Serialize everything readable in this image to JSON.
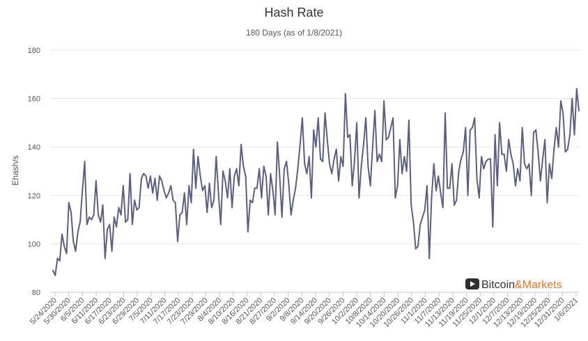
{
  "chart_data": {
    "type": "line",
    "title": "Hash Rate",
    "subtitle": "180 Days (as of 1/8/2021)",
    "xlabel": "",
    "ylabel": "Ehash/s",
    "ylim": [
      80,
      180
    ],
    "yticks": [
      80,
      100,
      120,
      140,
      160,
      180
    ],
    "grid": true,
    "legend": "none",
    "x_tick_labels": [
      "5/24/2020",
      "5/30/2020",
      "6/5/2020",
      "6/11/2020",
      "6/17/2020",
      "6/23/2020",
      "6/29/2020",
      "7/5/2020",
      "7/11/2020",
      "7/17/2020",
      "7/23/2020",
      "7/29/2020",
      "8/4/2020",
      "8/10/2020",
      "8/16/2020",
      "8/21/2020",
      "8/27/2020",
      "9/2/2020",
      "9/8/2020",
      "9/14/2020",
      "9/20/2020",
      "9/26/2020",
      "10/2/2020",
      "10/8/2020",
      "10/14/2020",
      "10/20/2020",
      "10/26/2020",
      "11/1/2020",
      "11/7/2020",
      "11/13/2020",
      "11/19/2020",
      "11/25/2020",
      "12/1/2020",
      "12/7/2020",
      "12/13/2020",
      "12/19/2020",
      "12/25/2020",
      "12/31/2020",
      "1/6/2021"
    ],
    "line_color": "#5a5f80",
    "series": [
      {
        "values": [
          89,
          87,
          94,
          93,
          104,
          99,
          96,
          117,
          113,
          101,
          97,
          105,
          109,
          122,
          134,
          108,
          111,
          110,
          112,
          126,
          112,
          109,
          116,
          94,
          106,
          108,
          97,
          111,
          107,
          115,
          112,
          124,
          109,
          110,
          129,
          108,
          118,
          114,
          115,
          127,
          129,
          128,
          123,
          128,
          121,
          127,
          118,
          128,
          126,
          122,
          119,
          121,
          124,
          118,
          117,
          101,
          112,
          113,
          121,
          108,
          124,
          117,
          139,
          123,
          136,
          128,
          122,
          124,
          113,
          125,
          115,
          118,
          136,
          121,
          108,
          130,
          126,
          119,
          131,
          115,
          128,
          131,
          124,
          141,
          132,
          128,
          105,
          118,
          117,
          123,
          123,
          131,
          119,
          132,
          128,
          112,
          129,
          122,
          112,
          142,
          128,
          111,
          131,
          134,
          125,
          112,
          118,
          123,
          131,
          141,
          152,
          133,
          129,
          136,
          119,
          147,
          140,
          152,
          135,
          134,
          154,
          143,
          133,
          129,
          135,
          139,
          126,
          136,
          132,
          162,
          144,
          145,
          124,
          134,
          150,
          119,
          132,
          141,
          152,
          132,
          124,
          140,
          155,
          134,
          137,
          134,
          159,
          143,
          144,
          148,
          152,
          119,
          124,
          143,
          129,
          136,
          130,
          151,
          116,
          109,
          98,
          99,
          108,
          111,
          114,
          124,
          94,
          119,
          133,
          122,
          128,
          121,
          115,
          154,
          123,
          123,
          133,
          116,
          118,
          130,
          135,
          138,
          148,
          120,
          147,
          148,
          152,
          127,
          119,
          136,
          131,
          134,
          135,
          135,
          107,
          145,
          124,
          150,
          137,
          137,
          130,
          143,
          137,
          133,
          124,
          131,
          126,
          148,
          133,
          131,
          133,
          120,
          146,
          147,
          138,
          126,
          135,
          143,
          117,
          133,
          127,
          139,
          148,
          140,
          159,
          154,
          138,
          139,
          145,
          160,
          145,
          164,
          155
        ]
      }
    ]
  },
  "watermark": {
    "brand_text": "Bitcoin&Markets",
    "brand_color_dark": "#2f2f2f",
    "brand_color_accent": "#e8742c"
  }
}
